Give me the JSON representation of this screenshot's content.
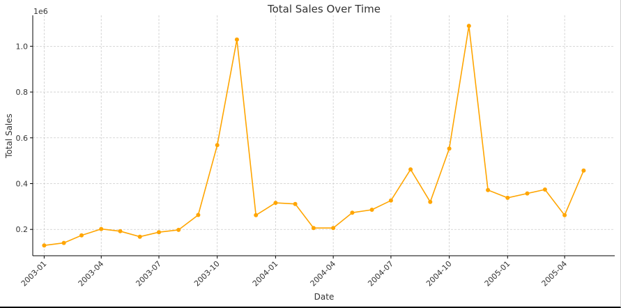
{
  "chart_data": {
    "type": "line",
    "title": "Total Sales Over Time",
    "xlabel": "Date",
    "ylabel": "Total Sales",
    "y_offset_label": "1e6",
    "x_tick_labels": [
      "2003-01",
      "2003-04",
      "2003-07",
      "2003-10",
      "2004-01",
      "2004-04",
      "2004-07",
      "2004-10",
      "2005-01",
      "2005-04"
    ],
    "y_tick_labels": [
      "0.2",
      "0.4",
      "0.6",
      "0.8",
      "1.0"
    ],
    "y_ticks": [
      0.2,
      0.4,
      0.6,
      0.8,
      1.0
    ],
    "ylim": [
      0.085,
      1.135
    ],
    "xlim": [
      "2002-12-14",
      "2005-06-19"
    ],
    "grid": true,
    "line_color": "#FFA500",
    "x": [
      "2003-01",
      "2003-02",
      "2003-03",
      "2003-04",
      "2003-05",
      "2003-06",
      "2003-07",
      "2003-08",
      "2003-09",
      "2003-10",
      "2003-11",
      "2003-12",
      "2004-01",
      "2004-02",
      "2004-03",
      "2004-04",
      "2004-05",
      "2004-06",
      "2004-07",
      "2004-08",
      "2004-09",
      "2004-10",
      "2004-11",
      "2004-12",
      "2005-01",
      "2005-02",
      "2005-03",
      "2005-04",
      "2005-05"
    ],
    "values": [
      0.13,
      0.141,
      0.174,
      0.202,
      0.192,
      0.168,
      0.188,
      0.198,
      0.263,
      0.568,
      1.029,
      0.262,
      0.316,
      0.311,
      0.206,
      0.206,
      0.273,
      0.286,
      0.326,
      0.462,
      0.32,
      0.553,
      1.089,
      0.372,
      0.338,
      0.357,
      0.374,
      0.262,
      0.457
    ]
  }
}
